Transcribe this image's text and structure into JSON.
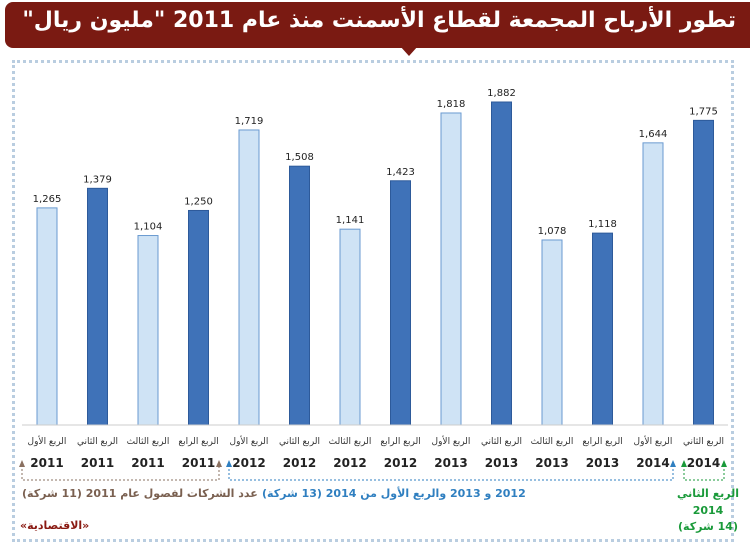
{
  "title": "تطور الأرباح المجمعة لقطاع الأسمنت منذ عام 2011 \"مليون ريال\"",
  "chart_data": {
    "type": "bar",
    "title": "تطور الأرباح المجمعة لقطاع الأسمنت منذ عام 2011 \"مليون ريال\"",
    "categories": [
      {
        "quarter": "الربع الأول",
        "year": "2011"
      },
      {
        "quarter": "الربع الثاني",
        "year": "2011"
      },
      {
        "quarter": "الربع الثالث",
        "year": "2011"
      },
      {
        "quarter": "الربع الرابع",
        "year": "2011"
      },
      {
        "quarter": "الربع الأول",
        "year": "2012"
      },
      {
        "quarter": "الربع الثاني",
        "year": "2012"
      },
      {
        "quarter": "الربع الثالث",
        "year": "2012"
      },
      {
        "quarter": "الربع الرابع",
        "year": "2012"
      },
      {
        "quarter": "الربع الأول",
        "year": "2013"
      },
      {
        "quarter": "الربع الثاني",
        "year": "2013"
      },
      {
        "quarter": "الربع الثالث",
        "year": "2013"
      },
      {
        "quarter": "الربع الرابع",
        "year": "2013"
      },
      {
        "quarter": "الربع الأول",
        "year": "2014"
      },
      {
        "quarter": "الربع الثاني",
        "year": "2014"
      }
    ],
    "values": [
      1265,
      1379,
      1104,
      1250,
      1719,
      1508,
      1141,
      1423,
      1818,
      1882,
      1078,
      1118,
      1644,
      1775
    ],
    "labels": [
      "1,265",
      "1,379",
      "1,104",
      "1,250",
      "1,719",
      "1,508",
      "1,141",
      "1,423",
      "1,818",
      "1,882",
      "1,078",
      "1,118",
      "1,644",
      "1,775"
    ],
    "ylim": [
      0,
      1882
    ],
    "grid": false,
    "colors": {
      "light": "#cfe3f5",
      "dark": "#3f72b8",
      "light_stroke": "#6a9ad0"
    }
  },
  "notes": {
    "group_2011": "عدد الشركات لفصول عام 2011 (11 شركة)",
    "group_2012": "2012 و 2013 والربع الأول من 2014 (13 شركة)",
    "group_2014_line1": "الربع الثاني",
    "group_2014_line2": "2014",
    "group_2014_line3": "(14 شركة)",
    "colors": {
      "2011": "#8a7060",
      "2012": "#2f7fc0",
      "2014": "#1a9a3a"
    }
  },
  "source": "«الاقتصادية»"
}
